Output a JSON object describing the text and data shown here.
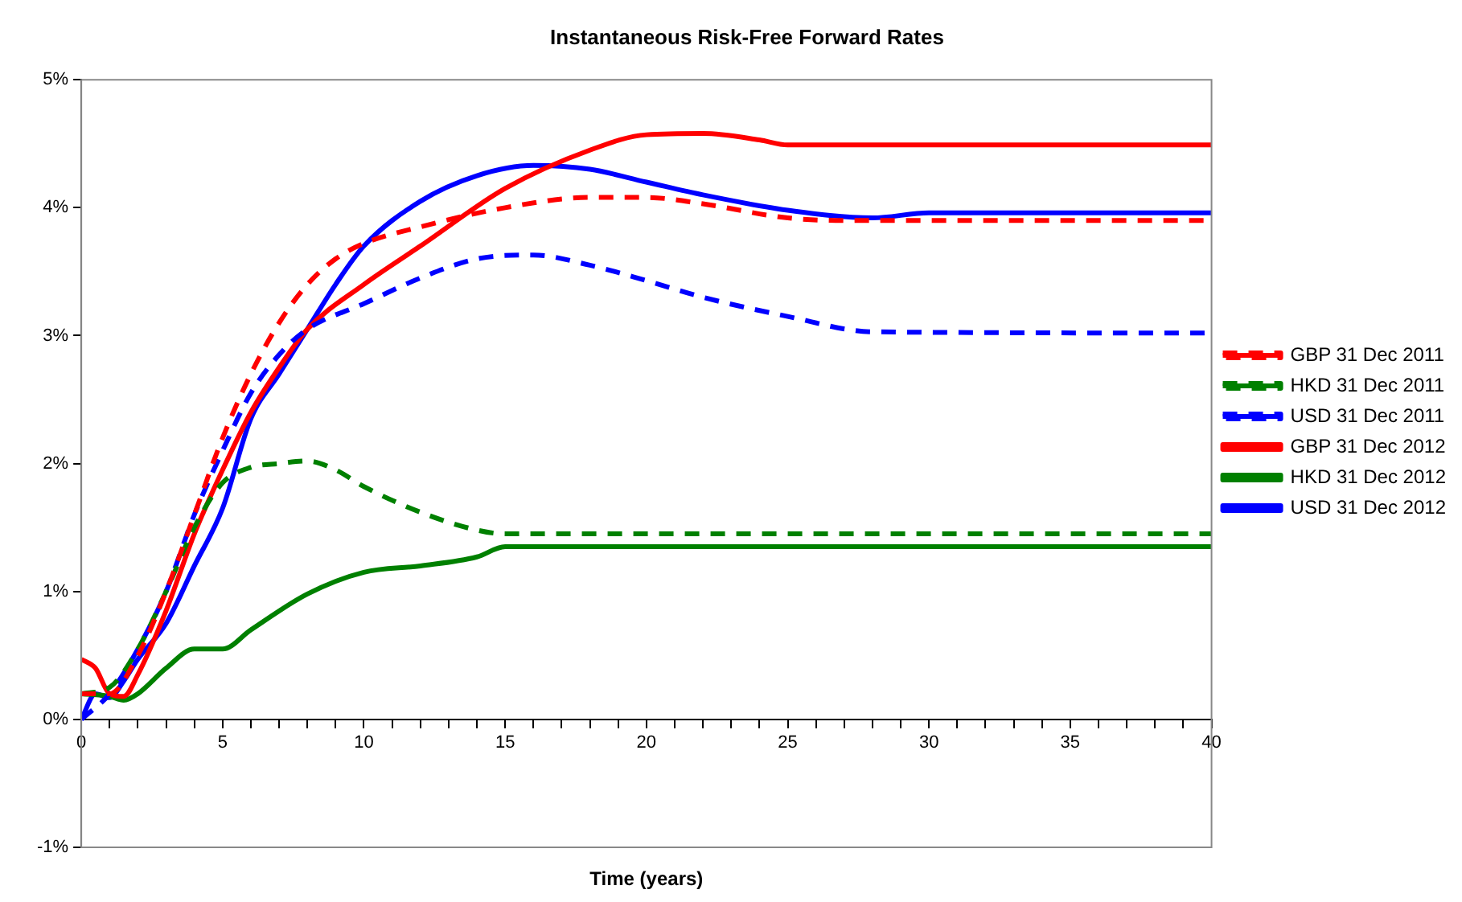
{
  "chart_data": {
    "type": "line",
    "title": "Instantaneous Risk-Free Forward Rates",
    "xlabel": "Time (years)",
    "xlim": [
      0,
      40
    ],
    "xticks": [
      0,
      {
        "value": 1,
        "label": null
      },
      {
        "value": 2,
        "label": null
      },
      {
        "value": 3,
        "label": null
      },
      {
        "value": 4,
        "label": null
      },
      5,
      {
        "value": 6,
        "label": null
      },
      {
        "value": 7,
        "label": null
      },
      {
        "value": 8,
        "label": null
      },
      {
        "value": 9,
        "label": null
      },
      10,
      {
        "value": 11,
        "label": null
      },
      {
        "value": 12,
        "label": null
      },
      {
        "value": 13,
        "label": null
      },
      {
        "value": 14,
        "label": null
      },
      15,
      {
        "value": 16,
        "label": null
      },
      {
        "value": 17,
        "label": null
      },
      {
        "value": 18,
        "label": null
      },
      {
        "value": 19,
        "label": null
      },
      20,
      {
        "value": 21,
        "label": null
      },
      {
        "value": 22,
        "label": null
      },
      {
        "value": 23,
        "label": null
      },
      {
        "value": 24,
        "label": null
      },
      25,
      {
        "value": 26,
        "label": null
      },
      {
        "value": 27,
        "label": null
      },
      {
        "value": 28,
        "label": null
      },
      {
        "value": 29,
        "label": null
      },
      30,
      {
        "value": 31,
        "label": null
      },
      {
        "value": 32,
        "label": null
      },
      {
        "value": 33,
        "label": null
      },
      {
        "value": 34,
        "label": null
      },
      35,
      {
        "value": 36,
        "label": null
      },
      {
        "value": 37,
        "label": null
      },
      {
        "value": 38,
        "label": null
      },
      {
        "value": 39,
        "label": null
      },
      40
    ],
    "ylim": [
      -1,
      5
    ],
    "yticks": [
      {
        "value": -1,
        "label": "-1%"
      },
      {
        "value": 0,
        "label": "0%"
      },
      {
        "value": 1,
        "label": "1%"
      },
      {
        "value": 2,
        "label": "2%"
      },
      {
        "value": 3,
        "label": "3%"
      },
      {
        "value": 4,
        "label": "4%"
      },
      {
        "value": 5,
        "label": "5%"
      }
    ],
    "grid": false,
    "legend": "right",
    "marker": "none",
    "series": [
      {
        "name": "GBP 31 Dec 2011",
        "color": "#ff0000",
        "line_style": "dashed",
        "x": [
          0,
          1,
          2,
          3,
          4,
          5,
          6,
          7,
          8,
          9,
          10,
          12,
          15,
          18,
          20,
          22,
          25,
          27,
          40
        ],
        "values": [
          0.2,
          0.2,
          0.5,
          1.0,
          1.6,
          2.2,
          2.7,
          3.1,
          3.4,
          3.6,
          3.72,
          3.85,
          4.0,
          4.08,
          4.08,
          4.03,
          3.92,
          3.9,
          3.9
        ]
      },
      {
        "name": "HKD 31 Dec 2011",
        "color": "#008000",
        "line_style": "dashed",
        "x": [
          0,
          1,
          2,
          3,
          4,
          5,
          6,
          7,
          8,
          9,
          10,
          12,
          14,
          15,
          40
        ],
        "values": [
          0.2,
          0.25,
          0.55,
          1.0,
          1.5,
          1.85,
          1.97,
          2.0,
          2.02,
          1.95,
          1.82,
          1.62,
          1.48,
          1.45,
          1.45
        ]
      },
      {
        "name": "USD 31 Dec 2011",
        "color": "#0000ff",
        "line_style": "dashed",
        "x": [
          0,
          1,
          2,
          3,
          4,
          5,
          6,
          7,
          8,
          10,
          12,
          14,
          16,
          18,
          20,
          22,
          25,
          28,
          40
        ],
        "values": [
          0,
          0.2,
          0.55,
          1.0,
          1.6,
          2.1,
          2.55,
          2.85,
          3.05,
          3.25,
          3.45,
          3.6,
          3.63,
          3.55,
          3.43,
          3.3,
          3.15,
          3.03,
          3.02
        ]
      },
      {
        "name": "GBP 31 Dec 2012",
        "color": "#ff0000",
        "line_style": "solid",
        "x": [
          0,
          0.5,
          1,
          1.5,
          2,
          3,
          4,
          5,
          6,
          7,
          8,
          10,
          12,
          15,
          18,
          20,
          22,
          24,
          25,
          40
        ],
        "values": [
          0.47,
          0.4,
          0.2,
          0.18,
          0.35,
          0.85,
          1.45,
          1.95,
          2.4,
          2.75,
          3.05,
          3.4,
          3.7,
          4.15,
          4.45,
          4.57,
          4.58,
          4.53,
          4.49,
          4.49
        ]
      },
      {
        "name": "HKD 31 Dec 2012",
        "color": "#008000",
        "line_style": "solid",
        "x": [
          0,
          1,
          1.5,
          2,
          3,
          4,
          5,
          6,
          8,
          10,
          12,
          14,
          15,
          40
        ],
        "values": [
          0.2,
          0.18,
          0.15,
          0.2,
          0.4,
          0.55,
          0.55,
          0.7,
          0.98,
          1.15,
          1.2,
          1.27,
          1.35,
          1.35
        ]
      },
      {
        "name": "USD 31 Dec 2012",
        "color": "#0000ff",
        "line_style": "solid",
        "x": [
          0,
          0.5,
          1,
          1.5,
          2,
          3,
          4,
          5,
          6,
          7,
          8,
          9,
          10,
          12,
          14,
          16,
          18,
          20,
          22,
          25,
          28,
          30,
          40
        ],
        "values": [
          0,
          0.2,
          0.17,
          0.3,
          0.47,
          0.75,
          1.2,
          1.65,
          2.35,
          2.7,
          3.05,
          3.4,
          3.7,
          4.05,
          4.25,
          4.33,
          4.3,
          4.2,
          4.1,
          3.98,
          3.92,
          3.96,
          3.96
        ]
      }
    ]
  }
}
